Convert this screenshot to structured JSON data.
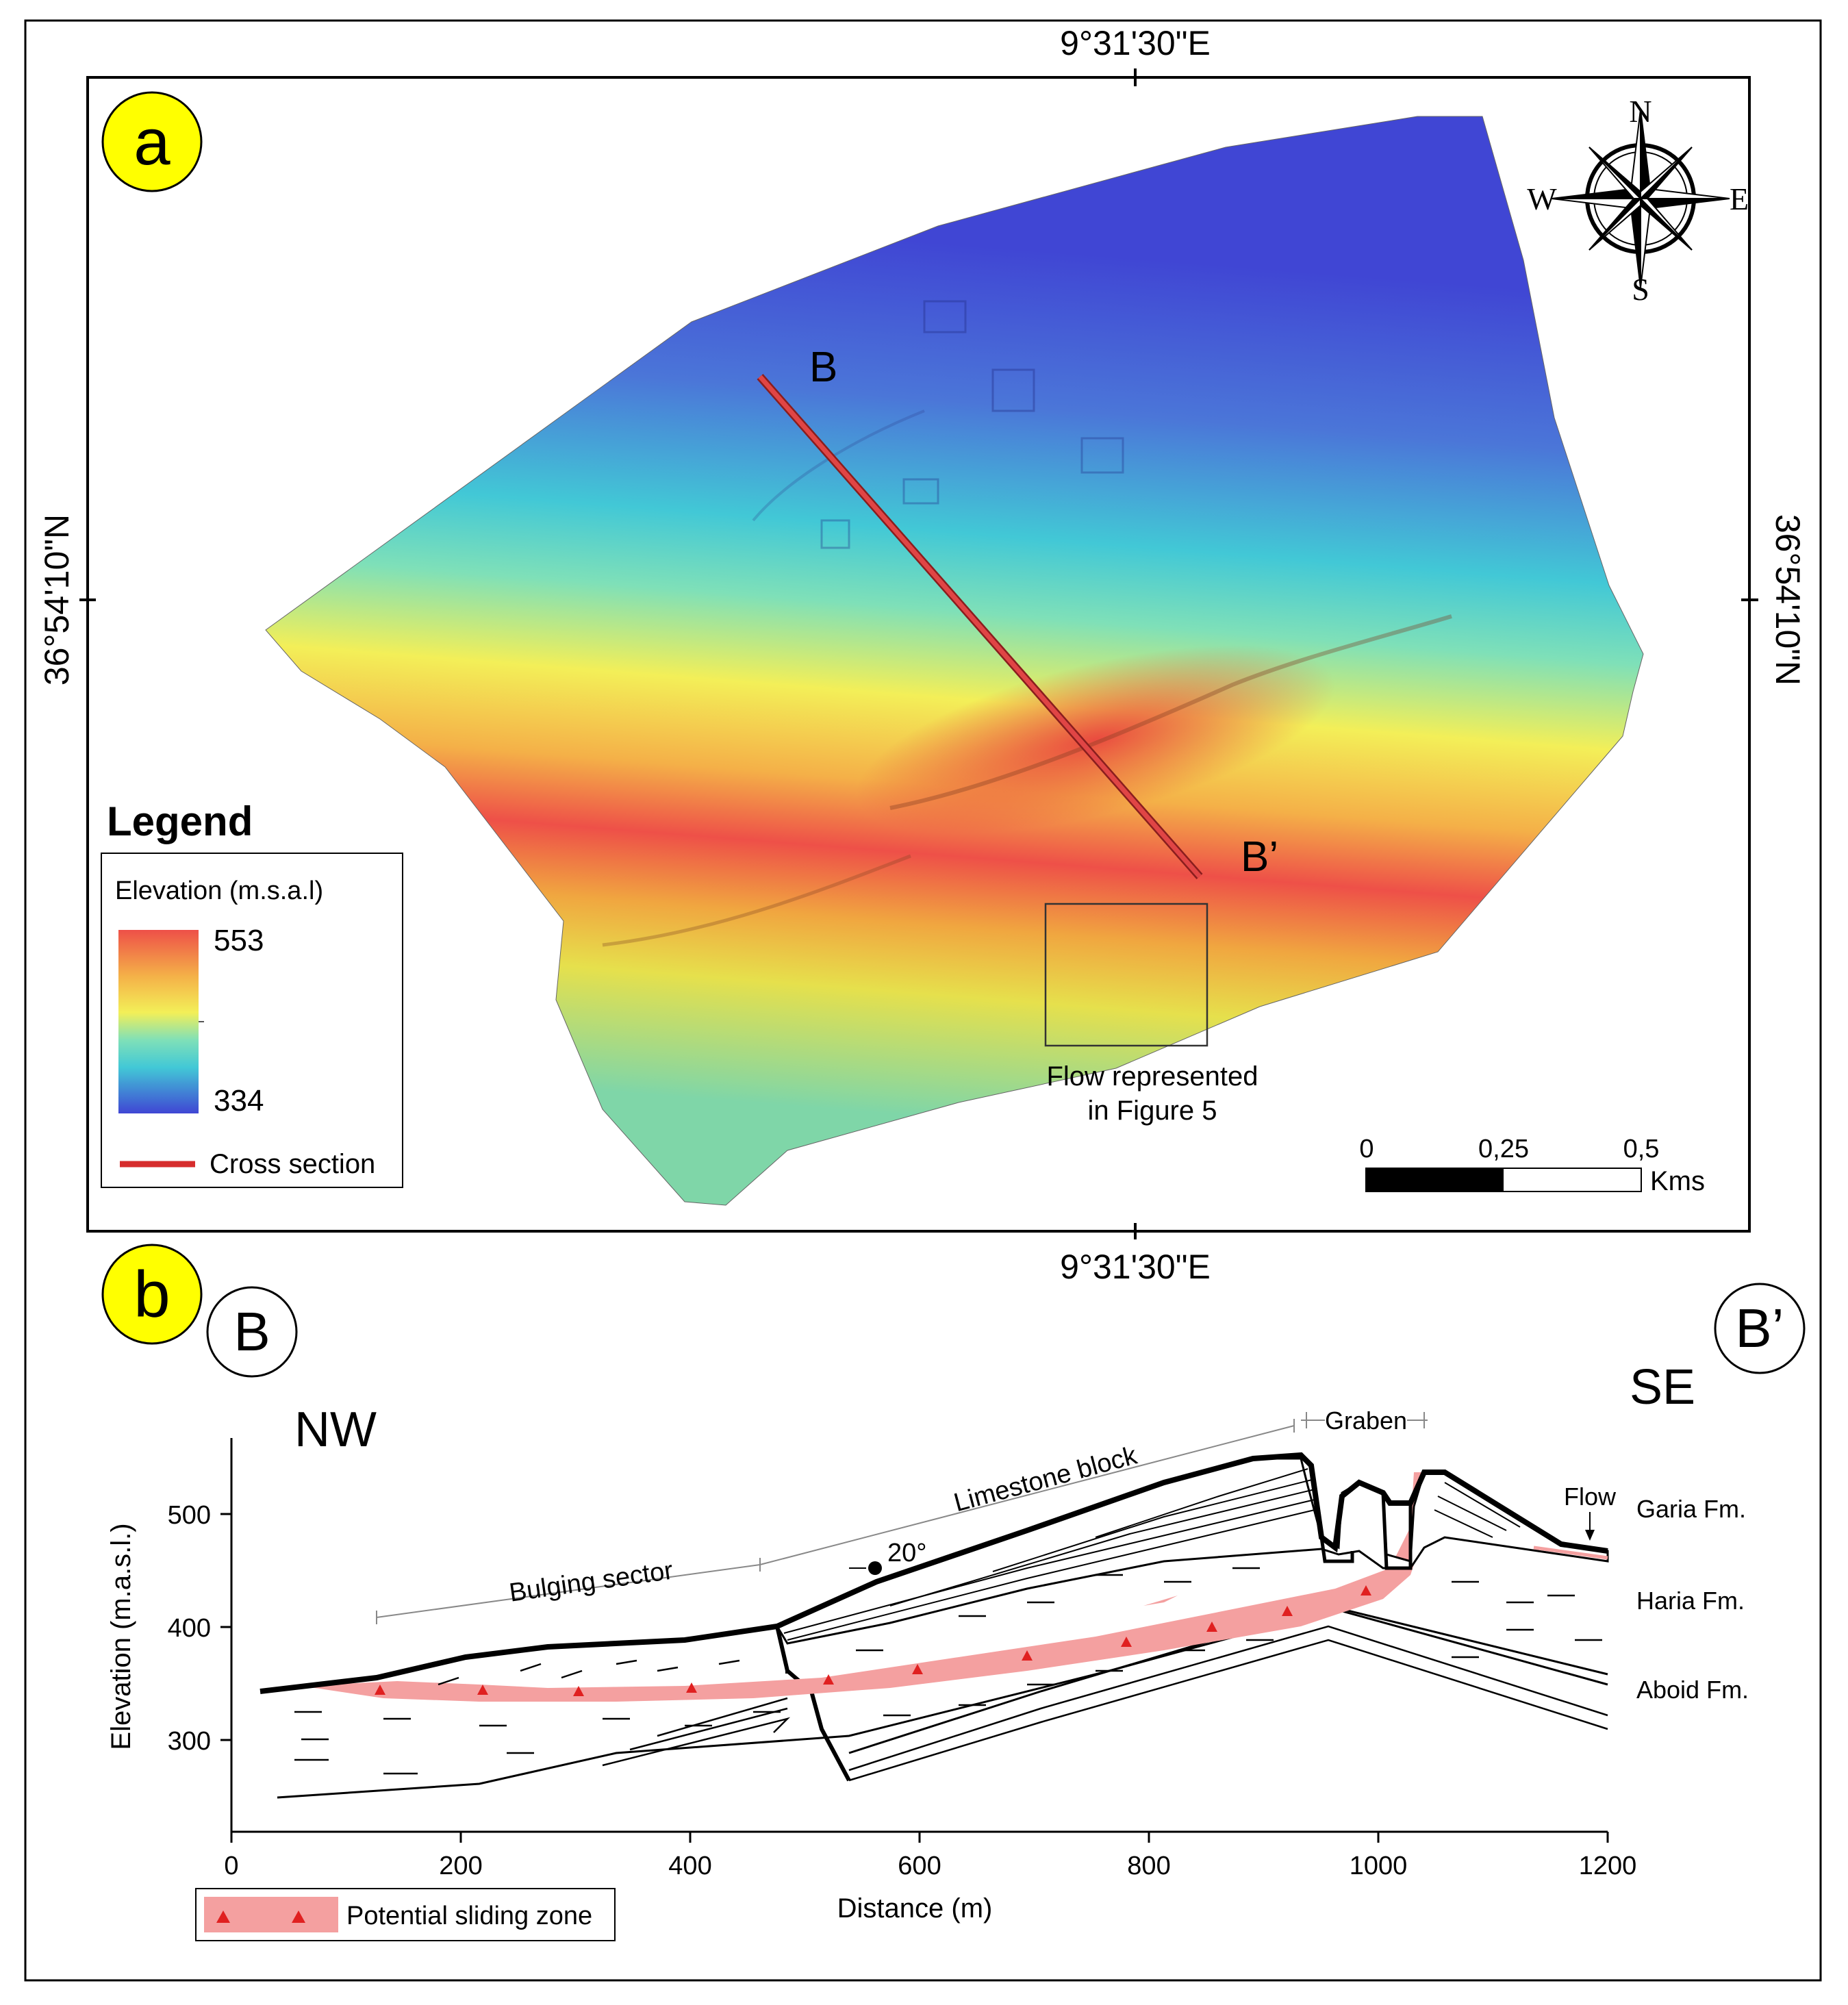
{
  "panel_a": {
    "label": "a",
    "coords": {
      "top_lon": "9°31'30\"E",
      "bottom_lon": "9°31'30\"E",
      "left_lat": "36°54'10\"N",
      "right_lat": "36°54'10\"N"
    },
    "compass": {
      "n": "N",
      "s": "S",
      "e": "E",
      "w": "W"
    },
    "section_start": "B",
    "section_end": "B’",
    "flow_box_caption": [
      "Flow represented",
      "in Figure 5"
    ],
    "legend": {
      "title": "Legend",
      "elevation_label": "Elevation (m.s.a.l)",
      "max": "553",
      "min": "334",
      "cross_section_label": "Cross section"
    },
    "scale_bar": {
      "ticks": [
        "0",
        "0,25",
        "0,5"
      ],
      "unit": "Kms"
    },
    "colors": {
      "high": "#e8323c",
      "mid_high": "#f5e43a",
      "mid": "#3ed6d0",
      "low": "#4a4fd8",
      "section_line": "#d62d2d"
    }
  },
  "panel_b": {
    "label": "b",
    "start_label": "B",
    "end_label": "B’",
    "nw": "NW",
    "se": "SE",
    "y_axis_label": "Elevation (m.a.s.l.)",
    "y_ticks": [
      "300",
      "400",
      "500"
    ],
    "x_axis_label": "Distance (m)",
    "x_ticks": [
      "0",
      "200",
      "400",
      "600",
      "800",
      "1000",
      "1200"
    ],
    "annotations": {
      "bulging": "Bulging sector",
      "limestone": "Limestone block",
      "graben": "Graben",
      "dip": "20°",
      "flow": "Flow"
    },
    "formations": [
      "Garia Fm.",
      "Haria Fm.",
      "Aboid Fm."
    ],
    "sliding_legend": "Potential sliding zone",
    "colors": {
      "sliding_zone": "#f4a0a0",
      "marker": "#e02020"
    }
  }
}
